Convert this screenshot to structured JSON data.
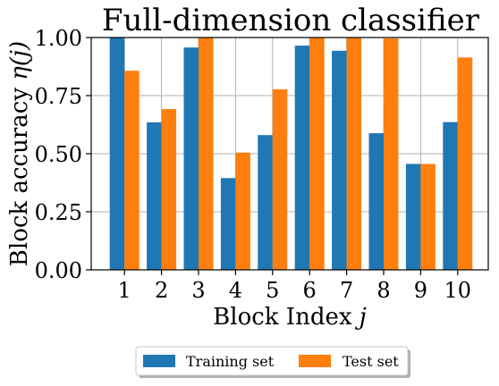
{
  "chart_data": {
    "type": "bar",
    "title": "Full-dimension classifier",
    "xlabel_main": "Block Index ",
    "xlabel_var": "j",
    "ylabel_main": "Block accuracy ",
    "ylabel_var": "η(j)",
    "categories": [
      "1",
      "2",
      "3",
      "4",
      "5",
      "6",
      "7",
      "8",
      "9",
      "10"
    ],
    "series": [
      {
        "name": "Training set",
        "color": "#1f77b4",
        "values": [
          1.0,
          0.635,
          0.957,
          0.395,
          0.58,
          0.965,
          0.943,
          0.588,
          0.456,
          0.636
        ]
      },
      {
        "name": "Test set",
        "color": "#ff7f0e",
        "values": [
          0.857,
          0.692,
          1.0,
          0.505,
          0.777,
          1.0,
          1.0,
          0.996,
          0.456,
          0.914
        ]
      }
    ],
    "ylim": [
      0,
      1.0
    ],
    "yticks": [
      "0.00",
      "0.25",
      "0.50",
      "0.75",
      "1.00"
    ],
    "grid": true,
    "legend_position": "bottom-center"
  }
}
